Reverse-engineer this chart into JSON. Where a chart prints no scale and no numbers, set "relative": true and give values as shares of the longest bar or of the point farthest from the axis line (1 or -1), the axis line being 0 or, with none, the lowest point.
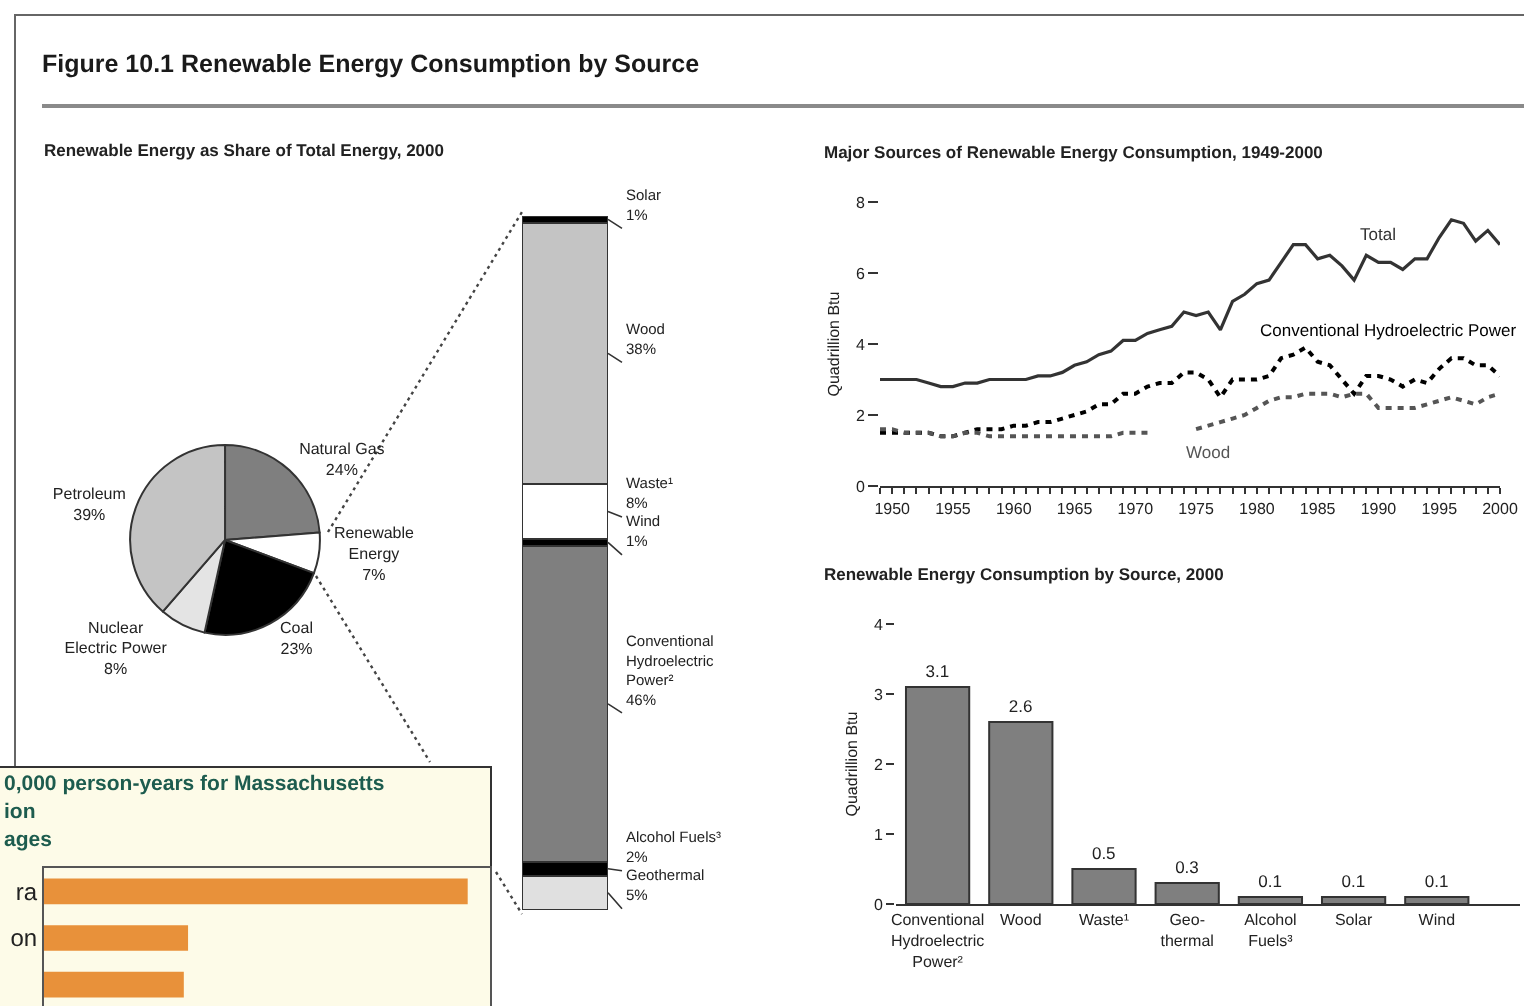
{
  "chart_data": [
    {
      "type": "pie",
      "title": "Figure 10.1 Renewable Energy Consumption by Source",
      "subtitle": "Renewable Energy as Share of Total Energy, 2000",
      "categories": [
        "Natural Gas",
        "Renewable Energy",
        "Coal",
        "Nuclear Electric Power",
        "Petroleum"
      ],
      "values": [
        24,
        7,
        23,
        8,
        39
      ],
      "value_labels": [
        "24%",
        "7%",
        "23%",
        "8%",
        "39%"
      ],
      "colors": [
        "#7f7f7f",
        "#ffffff",
        "#000000",
        "#e4e4e4",
        "#c4c4c4"
      ]
    },
    {
      "type": "bar",
      "stacked": true,
      "categories": [
        null
      ],
      "series": [
        {
          "name": "Geothermal",
          "color": "#e0e0e0",
          "values": [
            5
          ],
          "value_labels": [
            "5%"
          ]
        },
        {
          "name": "Alcohol Fuels³",
          "color": "#000000",
          "values": [
            2
          ],
          "value_labels": [
            "2%"
          ]
        },
        {
          "name": "Conventional Hydroelectric Power²",
          "color": "#7f7f7f",
          "values": [
            46
          ],
          "value_labels": [
            "46%"
          ]
        },
        {
          "name": "Wind",
          "color": "#000000",
          "values": [
            1
          ],
          "value_labels": [
            "1%"
          ]
        },
        {
          "name": "Waste¹",
          "color": "#ffffff",
          "values": [
            8
          ],
          "value_labels": [
            "8%"
          ]
        },
        {
          "name": "Wood",
          "color": "#c4c4c4",
          "values": [
            38
          ],
          "value_labels": [
            "38%"
          ]
        },
        {
          "name": "Solar",
          "color": "#000000",
          "values": [
            1
          ],
          "value_labels": [
            "1%"
          ]
        }
      ]
    },
    {
      "type": "line",
      "title": "Major Sources of Renewable Energy Consumption, 1949-2000",
      "ylabel": "Quadrillion Btu",
      "x": [
        1949,
        1950,
        1951,
        1952,
        1953,
        1954,
        1955,
        1956,
        1957,
        1958,
        1959,
        1960,
        1961,
        1962,
        1963,
        1964,
        1965,
        1966,
        1967,
        1968,
        1969,
        1970,
        1971,
        1972,
        1973,
        1974,
        1975,
        1976,
        1977,
        1978,
        1979,
        1980,
        1981,
        1982,
        1983,
        1984,
        1985,
        1986,
        1987,
        1988,
        1989,
        1990,
        1991,
        1992,
        1993,
        1994,
        1995,
        1996,
        1997,
        1998,
        1999,
        2000
      ],
      "series": [
        {
          "name": "Total",
          "color": "#333333",
          "line_style": "solid",
          "values": [
            3.0,
            3.0,
            3.0,
            3.0,
            2.9,
            2.8,
            2.8,
            2.9,
            2.9,
            3.0,
            3.0,
            3.0,
            3.0,
            3.1,
            3.1,
            3.2,
            3.4,
            3.5,
            3.7,
            3.8,
            4.1,
            4.1,
            4.3,
            4.4,
            4.5,
            4.9,
            4.8,
            4.9,
            4.4,
            5.2,
            5.4,
            5.7,
            5.8,
            6.3,
            6.8,
            6.8,
            6.4,
            6.5,
            6.2,
            5.8,
            6.5,
            6.3,
            6.3,
            6.1,
            6.4,
            6.4,
            7.0,
            7.5,
            7.4,
            6.9,
            7.2,
            6.8
          ]
        },
        {
          "name": "Conventional Hydroelectric Power",
          "color": "#000000",
          "line_style": "dotted",
          "values": [
            1.5,
            1.5,
            1.5,
            1.5,
            1.5,
            1.4,
            1.4,
            1.5,
            1.6,
            1.6,
            1.6,
            1.7,
            1.7,
            1.8,
            1.8,
            1.9,
            2.0,
            2.1,
            2.3,
            2.3,
            2.6,
            2.6,
            2.8,
            2.9,
            2.9,
            3.2,
            3.2,
            3.0,
            2.5,
            3.0,
            3.0,
            3.0,
            3.1,
            3.6,
            3.7,
            3.9,
            3.5,
            3.4,
            3.0,
            2.6,
            3.1,
            3.1,
            3.0,
            2.8,
            3.0,
            2.9,
            3.3,
            3.6,
            3.6,
            3.4,
            3.4,
            3.1
          ]
        },
        {
          "name": "Wood",
          "color": "#555555",
          "line_style": "dotted",
          "values": [
            1.6,
            1.6,
            1.5,
            1.5,
            1.5,
            1.4,
            1.4,
            1.5,
            1.5,
            1.4,
            1.4,
            1.4,
            1.4,
            1.4,
            1.4,
            1.4,
            1.4,
            1.4,
            1.4,
            1.4,
            1.5,
            1.5,
            1.5,
            null,
            null,
            null,
            1.6,
            1.7,
            1.8,
            1.9,
            2.0,
            2.2,
            2.4,
            2.5,
            2.5,
            2.6,
            2.6,
            2.6,
            2.5,
            2.6,
            2.6,
            2.2,
            2.2,
            2.2,
            2.2,
            2.3,
            2.4,
            2.5,
            2.4,
            2.3,
            2.5,
            2.6
          ]
        }
      ],
      "xlim": [
        1949,
        2000
      ],
      "xticks": [
        {
          "value": 1949,
          "label": null
        },
        1950,
        {
          "value": 1951,
          "label": null
        },
        {
          "value": 1952,
          "label": null
        },
        {
          "value": 1953,
          "label": null
        },
        {
          "value": 1954,
          "label": null
        },
        1955,
        {
          "value": 1956,
          "label": null
        },
        {
          "value": 1957,
          "label": null
        },
        {
          "value": 1958,
          "label": null
        },
        {
          "value": 1959,
          "label": null
        },
        1960,
        {
          "value": 1961,
          "label": null
        },
        {
          "value": 1962,
          "label": null
        },
        {
          "value": 1963,
          "label": null
        },
        {
          "value": 1964,
          "label": null
        },
        1965,
        {
          "value": 1966,
          "label": null
        },
        {
          "value": 1967,
          "label": null
        },
        {
          "value": 1968,
          "label": null
        },
        {
          "value": 1969,
          "label": null
        },
        1970,
        {
          "value": 1971,
          "label": null
        },
        {
          "value": 1972,
          "label": null
        },
        {
          "value": 1973,
          "label": null
        },
        {
          "value": 1974,
          "label": null
        },
        1975,
        {
          "value": 1976,
          "label": null
        },
        {
          "value": 1977,
          "label": null
        },
        {
          "value": 1978,
          "label": null
        },
        {
          "value": 1979,
          "label": null
        },
        1980,
        {
          "value": 1981,
          "label": null
        },
        {
          "value": 1982,
          "label": null
        },
        {
          "value": 1983,
          "label": null
        },
        {
          "value": 1984,
          "label": null
        },
        1985,
        {
          "value": 1986,
          "label": null
        },
        {
          "value": 1987,
          "label": null
        },
        {
          "value": 1988,
          "label": null
        },
        {
          "value": 1989,
          "label": null
        },
        1990,
        {
          "value": 1991,
          "label": null
        },
        {
          "value": 1992,
          "label": null
        },
        {
          "value": 1993,
          "label": null
        },
        {
          "value": 1994,
          "label": null
        },
        1995,
        {
          "value": 1996,
          "label": null
        },
        {
          "value": 1997,
          "label": null
        },
        {
          "value": 1998,
          "label": null
        },
        {
          "value": 1999,
          "label": null
        },
        2000
      ],
      "ylim": [
        0,
        8
      ],
      "yticks": [
        0,
        2,
        4,
        6,
        8
      ]
    },
    {
      "type": "bar",
      "title": "Renewable Energy Consumption by Source, 2000",
      "ylabel": "Quadrillion Btu",
      "categories": [
        "Conventional Hydroelectric Power²",
        "Wood",
        "Waste¹",
        "Geo-thermal",
        "Alcohol Fuels³",
        "Solar",
        "Wind"
      ],
      "values": [
        3.1,
        2.6,
        0.5,
        0.3,
        0.1,
        0.1,
        0.1
      ],
      "color": "#7f7f7f",
      "data_labels": true,
      "ylim": [
        0,
        4
      ],
      "yticks": [
        0,
        1,
        2,
        3,
        4
      ]
    },
    {
      "type": "bar",
      "orientation": "horizontal",
      "relative": true,
      "title": "0,000 person-years for Massachusetts",
      "subtitle": "ion",
      "annotations": [
        "ages"
      ],
      "categories": [
        "ra",
        "on",
        null
      ],
      "values": [
        1,
        0.34,
        0.33
      ],
      "color": "#e8913a"
    }
  ]
}
